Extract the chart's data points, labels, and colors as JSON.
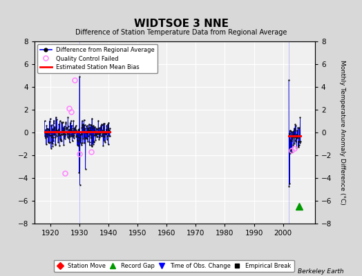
{
  "title": "WIDTSOE 3 NNE",
  "subtitle": "Difference of Station Temperature Data from Regional Average",
  "ylabel_right": "Monthly Temperature Anomaly Difference (°C)",
  "xlim": [
    1914.5,
    2011
  ],
  "ylim": [
    -8,
    8
  ],
  "yticks": [
    -8,
    -6,
    -4,
    -2,
    0,
    2,
    4,
    6,
    8
  ],
  "xticks": [
    1920,
    1930,
    1940,
    1950,
    1960,
    1970,
    1980,
    1990,
    2000
  ],
  "background_color": "#d8d8d8",
  "plot_background": "#f0f0f0",
  "grid_color": "#ffffff",
  "watermark": "Berkeley Earth",
  "main_line_color": "#0000cc",
  "main_marker_color": "#111111",
  "bias_line_color": "#ff0000",
  "qc_marker_color": "#ff88ff"
}
